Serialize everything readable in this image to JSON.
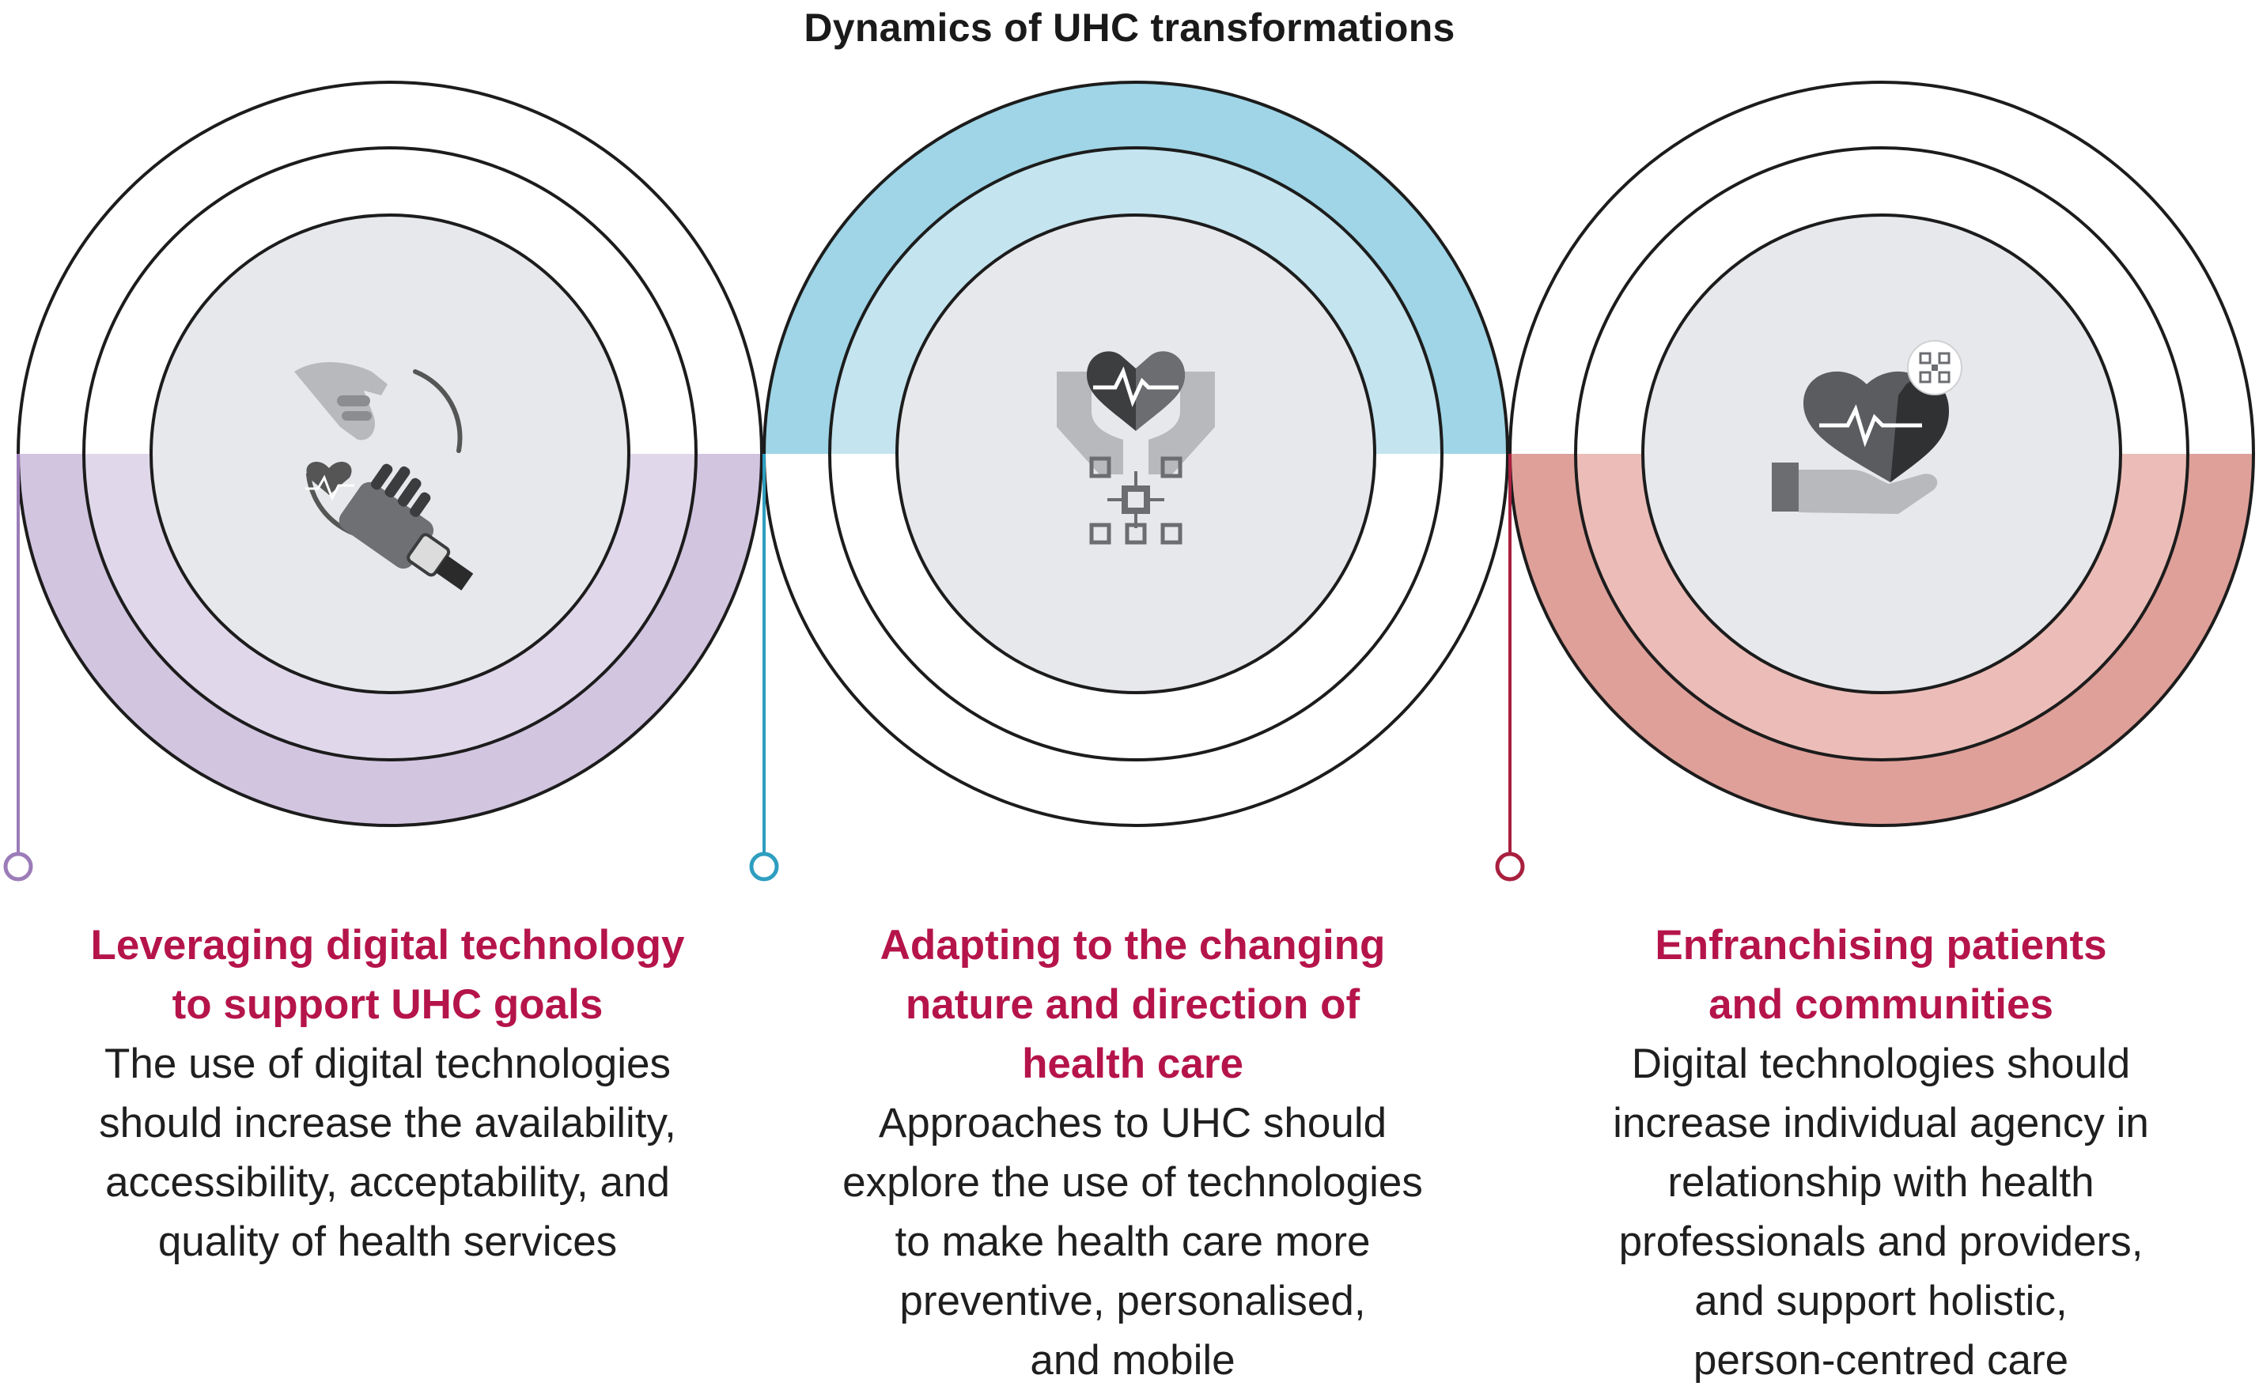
{
  "title": "Dynamics of UHC transformations",
  "colors": {
    "purple": "#d2c5e0",
    "purple_light": "#e0d8ea",
    "purple_stem": "#9c7cb8",
    "blue": "#9fd5e6",
    "blue_light": "#c4e4ef",
    "blue_stem": "#2e9ec0",
    "red": "#dfa09a",
    "red_light": "#ecbdb8",
    "red_stem": "#a8203e",
    "heading": "#b5144a",
    "core": "#e6e8eb",
    "ring": "#1c1c1c"
  },
  "pillars": [
    {
      "heading": [
        "Leveraging digital technology",
        "to support UHC goals"
      ],
      "body": [
        "The use of digital technologies",
        "should increase the availability,",
        "accessibility, acceptability, and",
        "quality of health services"
      ],
      "icon": "robot-hand-and-human-hand-icon"
    },
    {
      "heading": [
        "Adapting to the changing",
        "nature and direction of",
        "health care"
      ],
      "body": [
        "Approaches to UHC should",
        "explore the use of technologies",
        "to make health care more",
        "preventive, personalised,",
        "and mobile"
      ],
      "icon": "hands-heart-circuit-icon"
    },
    {
      "heading": [
        "Enfranchising patients",
        "and communities"
      ],
      "body": [
        "Digital technologies should",
        "increase individual agency in",
        "relationship with health",
        "professionals and providers,",
        "and support holistic,",
        "person-centred care"
      ],
      "icon": "hand-holding-heart-qr-icon"
    }
  ]
}
